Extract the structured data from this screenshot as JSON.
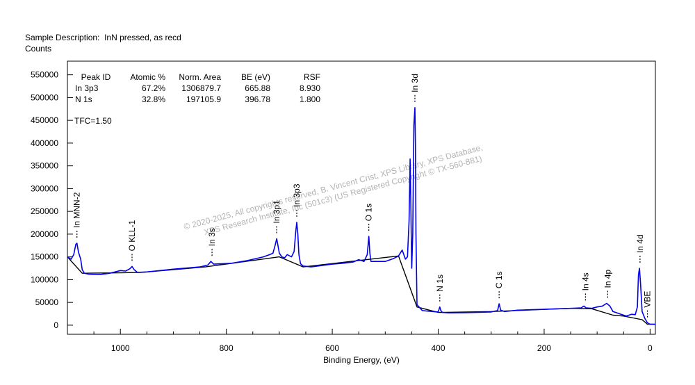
{
  "header": {
    "sample_prefix": "Sample Description:",
    "sample_value": "InN pressed, as recd",
    "y_unit": "Counts"
  },
  "table": {
    "columns": [
      "Peak ID",
      "Atomic %",
      "Norm. Area",
      "BE (eV)",
      "RSF"
    ],
    "rows": [
      [
        "In 3p3",
        "67.2%",
        "1306879.7",
        "665.88",
        "8.930"
      ],
      [
        "N 1s",
        "32.8%",
        "197105.9",
        "396.78",
        "1.800"
      ]
    ]
  },
  "tfc": "TFC=1.50",
  "watermark": {
    "line1": "©  2020-2025,  All copyrights reserved,   B. Vincent Crist,   XPS Library, XPS Database,",
    "line2": "XPS Research Institute, Inc (501c3)   (US Registered Copyright © TX-560-881)"
  },
  "chart_data": {
    "type": "line",
    "xlabel": "Binding Energy, (eV)",
    "ylabel": "Counts",
    "xlim": [
      1100,
      -10
    ],
    "ylim": [
      -20000,
      580000
    ],
    "x_reversed": true,
    "x_ticks": [
      1000,
      800,
      600,
      400,
      200,
      0
    ],
    "y_ticks": [
      0,
      50000,
      100000,
      150000,
      200000,
      250000,
      300000,
      350000,
      400000,
      450000,
      500000,
      550000
    ],
    "series": [
      {
        "role": "spectrum",
        "color": "#0000ee",
        "points": [
          [
            1100,
            150000
          ],
          [
            1093,
            145000
          ],
          [
            1088,
            155000
          ],
          [
            1084,
            178000
          ],
          [
            1082,
            180000
          ],
          [
            1079,
            160000
          ],
          [
            1075,
            145000
          ],
          [
            1072,
            122000
          ],
          [
            1068,
            114000
          ],
          [
            1060,
            112000
          ],
          [
            1040,
            111000
          ],
          [
            1020,
            114000
          ],
          [
            1000,
            120000
          ],
          [
            990,
            119000
          ],
          [
            982,
            124000
          ],
          [
            978,
            129000
          ],
          [
            974,
            122000
          ],
          [
            968,
            116000
          ],
          [
            950,
            117000
          ],
          [
            900,
            123000
          ],
          [
            850,
            128000
          ],
          [
            835,
            132000
          ],
          [
            829,
            140000
          ],
          [
            824,
            134000
          ],
          [
            790,
            136000
          ],
          [
            760,
            142000
          ],
          [
            730,
            150000
          ],
          [
            718,
            155000
          ],
          [
            712,
            158000
          ],
          [
            708,
            175000
          ],
          [
            705,
            190000
          ],
          [
            703,
            178000
          ],
          [
            700,
            158000
          ],
          [
            695,
            150000
          ],
          [
            690,
            148000
          ],
          [
            685,
            155000
          ],
          [
            677,
            150000
          ],
          [
            672,
            162000
          ],
          [
            669,
            205000
          ],
          [
            667,
            226000
          ],
          [
            665,
            200000
          ],
          [
            663,
            155000
          ],
          [
            660,
            135000
          ],
          [
            655,
            130000
          ],
          [
            640,
            128000
          ],
          [
            620,
            131000
          ],
          [
            600,
            134000
          ],
          [
            580,
            136000
          ],
          [
            560,
            139000
          ],
          [
            550,
            144000
          ],
          [
            540,
            140000
          ],
          [
            534,
            155000
          ],
          [
            531,
            195000
          ],
          [
            529,
            158000
          ],
          [
            527,
            140000
          ],
          [
            520,
            140000
          ],
          [
            500,
            140000
          ],
          [
            485,
            146000
          ],
          [
            475,
            152000
          ],
          [
            468,
            165000
          ],
          [
            462,
            145000
          ],
          [
            458,
            150000
          ],
          [
            455,
            230000
          ],
          [
            453,
            365000
          ],
          [
            452,
            290000
          ],
          [
            450,
            125000
          ],
          [
            448,
            200000
          ],
          [
            446,
            440000
          ],
          [
            444,
            478000
          ],
          [
            443,
            400000
          ],
          [
            442,
            200000
          ],
          [
            440,
            45000
          ],
          [
            430,
            32000
          ],
          [
            410,
            30000
          ],
          [
            400,
            29000
          ],
          [
            397,
            40000
          ],
          [
            395,
            32000
          ],
          [
            392,
            28000
          ],
          [
            380,
            27000
          ],
          [
            350,
            27500
          ],
          [
            300,
            29000
          ],
          [
            288,
            32000
          ],
          [
            285,
            47000
          ],
          [
            282,
            33000
          ],
          [
            275,
            30000
          ],
          [
            250,
            33000
          ],
          [
            200,
            35000
          ],
          [
            150,
            37000
          ],
          [
            130,
            38000
          ],
          [
            125,
            42000
          ],
          [
            121,
            38000
          ],
          [
            110,
            37000
          ],
          [
            100,
            40000
          ],
          [
            90,
            42000
          ],
          [
            82,
            48000
          ],
          [
            76,
            42000
          ],
          [
            70,
            30000
          ],
          [
            55,
            24000
          ],
          [
            45,
            20000
          ],
          [
            35,
            24000
          ],
          [
            28,
            23000
          ],
          [
            24,
            40000
          ],
          [
            22,
            110000
          ],
          [
            20,
            125000
          ],
          [
            18,
            90000
          ],
          [
            15,
            30000
          ],
          [
            10,
            15000
          ],
          [
            5,
            5000
          ],
          [
            0,
            2000
          ],
          [
            -5,
            2000
          ],
          [
            -10,
            2000
          ]
        ]
      },
      {
        "role": "background",
        "color": "#000000",
        "points": [
          [
            1100,
            150000
          ],
          [
            1072,
            114000
          ],
          [
            1000,
            115000
          ],
          [
            960,
            116000
          ],
          [
            840,
            128000
          ],
          [
            700,
            150000
          ],
          [
            655,
            128000
          ],
          [
            475,
            152000
          ],
          [
            440,
            40000
          ],
          [
            400,
            28000
          ],
          [
            300,
            30000
          ],
          [
            150,
            37000
          ],
          [
            110,
            36000
          ],
          [
            70,
            22000
          ],
          [
            50,
            20000
          ],
          [
            15,
            12000
          ],
          [
            5,
            2000
          ],
          [
            -10,
            2000
          ]
        ]
      }
    ],
    "annotations": [
      {
        "label": "In MNN-2",
        "x": 1082,
        "y": 180000
      },
      {
        "label": "O KLL-1",
        "x": 978,
        "y": 129000
      },
      {
        "label": "In 3s",
        "x": 827,
        "y": 140000
      },
      {
        "label": "In 3p1",
        "x": 705,
        "y": 190000
      },
      {
        "label": "In 3p3",
        "x": 667,
        "y": 226000
      },
      {
        "label": "O 1s",
        "x": 531,
        "y": 195000
      },
      {
        "label": "In 3d",
        "x": 444,
        "y": 478000
      },
      {
        "label": "N 1s",
        "x": 397,
        "y": 40000
      },
      {
        "label": "C 1s",
        "x": 285,
        "y": 47000
      },
      {
        "label": "In 4s",
        "x": 122,
        "y": 42000
      },
      {
        "label": "In 4p",
        "x": 80,
        "y": 48000
      },
      {
        "label": "In 4d",
        "x": 19,
        "y": 125000
      },
      {
        "label": "VBE",
        "x": 5,
        "y": 5000
      }
    ]
  }
}
